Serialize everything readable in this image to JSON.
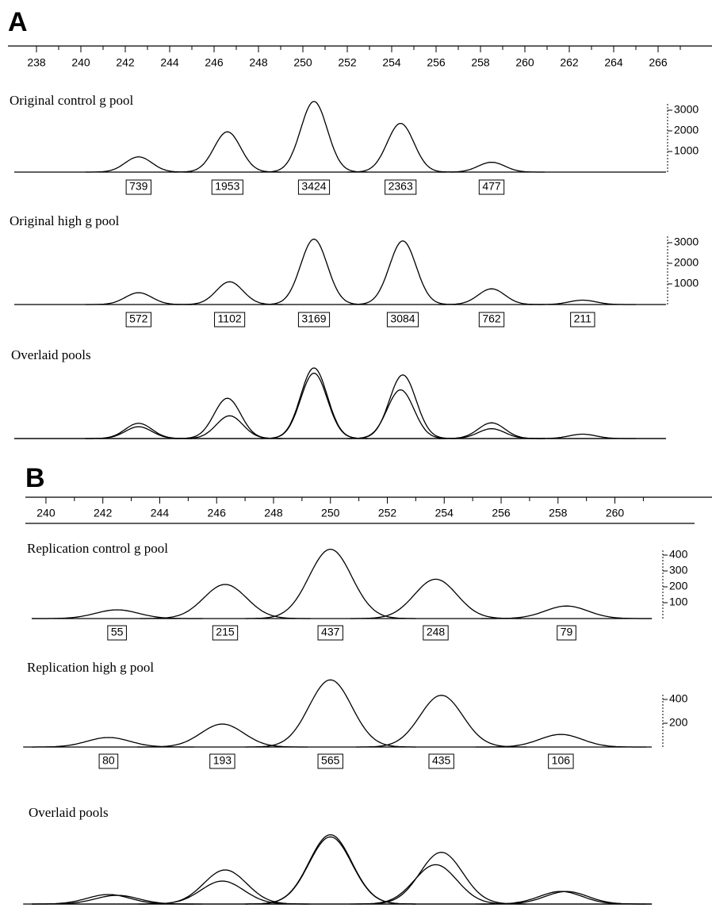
{
  "chart_data": [
    {
      "type": "electropherogram",
      "panel_label": "A",
      "xlim": [
        237,
        268
      ],
      "xticks": [
        238,
        240,
        242,
        244,
        246,
        248,
        250,
        252,
        254,
        256,
        258,
        260,
        262,
        264,
        266
      ],
      "xminor": [
        239,
        241,
        243,
        245,
        247,
        249,
        251,
        253,
        255,
        257,
        259,
        261,
        263,
        265,
        267
      ],
      "series": [
        {
          "name": "Original control g pool",
          "color": "#000000",
          "ylim": [
            0,
            3500
          ],
          "yticks": [
            1000,
            2000,
            3000
          ],
          "x": [
            242.6,
            246.6,
            250.5,
            254.4,
            258.5
          ],
          "values": [
            739,
            1953,
            3424,
            2363,
            477
          ]
        },
        {
          "name": "Original high g pool",
          "color": "#000000",
          "ylim": [
            0,
            3500
          ],
          "yticks": [
            1000,
            2000,
            3000
          ],
          "x": [
            242.6,
            246.7,
            250.5,
            254.5,
            258.5,
            262.6
          ],
          "values": [
            572,
            1102,
            3169,
            3084,
            762,
            211
          ]
        }
      ],
      "overlay_title": "Overlaid pools"
    },
    {
      "type": "electropherogram",
      "panel_label": "B",
      "xlim": [
        239.5,
        262.8
      ],
      "xticks": [
        240,
        242,
        244,
        246,
        248,
        250,
        252,
        254,
        256,
        258,
        260
      ],
      "xminor": [
        241,
        243,
        245,
        247,
        249,
        251,
        253,
        255,
        257,
        259,
        261
      ],
      "series": [
        {
          "name": "Replication control g pool",
          "color": "#000000",
          "ylim": [
            0,
            450
          ],
          "yticks": [
            100,
            200,
            300,
            400
          ],
          "x": [
            242.5,
            246.3,
            250.0,
            253.7,
            258.3
          ],
          "values": [
            55,
            215,
            437,
            248,
            79
          ]
        },
        {
          "name": "Replication high g pool",
          "color": "#000000",
          "ylim": [
            0,
            600
          ],
          "yticks": [
            200,
            400
          ],
          "x": [
            242.2,
            246.2,
            250.0,
            253.9,
            258.1
          ],
          "values": [
            80,
            193,
            565,
            435,
            106
          ]
        }
      ],
      "overlay_title": "Overlaid pools"
    }
  ]
}
